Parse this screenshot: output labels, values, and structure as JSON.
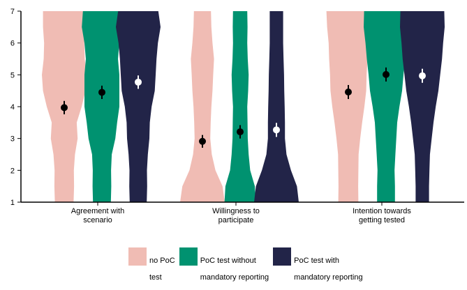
{
  "chart_data": {
    "type": "violin",
    "ylim": [
      1,
      7
    ],
    "y_ticks": [
      "1",
      "2",
      "3",
      "4",
      "5",
      "6",
      "7"
    ],
    "categories": [
      [
        "Agreement with",
        "scenario"
      ],
      [
        "Willingness to",
        "participate"
      ],
      [
        "Intention towards",
        "getting tested"
      ]
    ],
    "series": [
      {
        "name": [
          "no PoC",
          "test"
        ],
        "color": "#f0bcb4",
        "dot_color": "#000000",
        "means": [
          3.97,
          2.91,
          4.46
        ],
        "ci": [
          [
            3.76,
            4.18
          ],
          [
            2.71,
            3.11
          ],
          [
            4.24,
            4.68
          ]
        ]
      },
      {
        "name": [
          "PoC test without",
          "mandatory reporting"
        ],
        "color": "#009270",
        "dot_color": "#000000",
        "means": [
          4.45,
          3.21,
          5.01
        ],
        "ci": [
          [
            4.24,
            4.66
          ],
          [
            3.0,
            3.42
          ],
          [
            4.79,
            5.23
          ]
        ]
      },
      {
        "name": [
          "PoC test with",
          "mandatory reporting"
        ],
        "color": "#222448",
        "dot_color": "#ffffff",
        "means": [
          4.77,
          3.27,
          4.97
        ],
        "ci": [
          [
            4.56,
            4.98
          ],
          [
            3.05,
            3.49
          ],
          [
            4.75,
            5.19
          ]
        ]
      }
    ],
    "violin_density": [
      [
        [
          [
            1,
            0.42
          ],
          [
            1.5,
            0.44
          ],
          [
            2,
            0.43
          ],
          [
            2.5,
            0.48
          ],
          [
            3,
            0.6
          ],
          [
            3.5,
            0.56
          ],
          [
            4,
            0.78
          ],
          [
            4.5,
            0.95
          ],
          [
            5,
            1.0
          ],
          [
            5.5,
            0.92
          ],
          [
            6,
            0.9
          ],
          [
            6.5,
            0.95
          ],
          [
            7,
            0.95
          ]
        ],
        [
          [
            1,
            0.4
          ],
          [
            1.5,
            0.42
          ],
          [
            2,
            0.41
          ],
          [
            2.5,
            0.44
          ],
          [
            3,
            0.6
          ],
          [
            3.5,
            0.68
          ],
          [
            4,
            0.78
          ],
          [
            4.5,
            0.78
          ],
          [
            5,
            0.78
          ],
          [
            5.5,
            0.72
          ],
          [
            6,
            0.78
          ],
          [
            6.5,
            0.9
          ],
          [
            7,
            0.85
          ]
        ],
        [
          [
            1,
            0.38
          ],
          [
            1.5,
            0.4
          ],
          [
            2,
            0.39
          ],
          [
            2.5,
            0.43
          ],
          [
            3,
            0.5
          ],
          [
            3.5,
            0.52
          ],
          [
            4,
            0.6
          ],
          [
            4.5,
            0.74
          ],
          [
            5,
            0.78
          ],
          [
            5.5,
            0.82
          ],
          [
            6,
            0.88
          ],
          [
            6.5,
            1.0
          ],
          [
            7,
            0.9
          ]
        ]
      ],
      [
        [
          [
            1,
            1.0
          ],
          [
            1.5,
            0.9
          ],
          [
            2,
            0.58
          ],
          [
            2.5,
            0.42
          ],
          [
            3,
            0.35
          ],
          [
            3.5,
            0.37
          ],
          [
            4,
            0.4
          ],
          [
            4.5,
            0.45
          ],
          [
            5,
            0.48
          ],
          [
            5.5,
            0.52
          ],
          [
            6,
            0.45
          ],
          [
            6.5,
            0.4
          ],
          [
            7,
            0.38
          ]
        ],
        [
          [
            1,
            0.7
          ],
          [
            1.5,
            0.66
          ],
          [
            2,
            0.45
          ],
          [
            2.5,
            0.38
          ],
          [
            3,
            0.34
          ],
          [
            3.5,
            0.33
          ],
          [
            4,
            0.32
          ],
          [
            4.5,
            0.36
          ],
          [
            5,
            0.38
          ],
          [
            5.5,
            0.34
          ],
          [
            6,
            0.32
          ],
          [
            6.5,
            0.33
          ],
          [
            7,
            0.32
          ]
        ],
        [
          [
            1,
            1.0
          ],
          [
            1.5,
            0.92
          ],
          [
            2,
            0.65
          ],
          [
            2.5,
            0.45
          ],
          [
            3,
            0.38
          ],
          [
            3.5,
            0.38
          ],
          [
            4,
            0.37
          ],
          [
            4.5,
            0.35
          ],
          [
            5,
            0.34
          ],
          [
            5.5,
            0.32
          ],
          [
            6,
            0.3
          ],
          [
            6.5,
            0.3
          ],
          [
            7,
            0.3
          ]
        ]
      ],
      [
        [
          [
            1,
            0.45
          ],
          [
            1.5,
            0.44
          ],
          [
            2,
            0.45
          ],
          [
            2.5,
            0.46
          ],
          [
            3,
            0.53
          ],
          [
            3.5,
            0.62
          ],
          [
            4,
            0.72
          ],
          [
            4.5,
            0.8
          ],
          [
            5,
            0.82
          ],
          [
            5.5,
            0.86
          ],
          [
            6,
            0.88
          ],
          [
            6.5,
            0.95
          ],
          [
            7,
            0.98
          ]
        ],
        [
          [
            1,
            0.4
          ],
          [
            1.5,
            0.4
          ],
          [
            2,
            0.38
          ],
          [
            2.5,
            0.42
          ],
          [
            3,
            0.46
          ],
          [
            3.5,
            0.5
          ],
          [
            4,
            0.6
          ],
          [
            4.5,
            0.72
          ],
          [
            5,
            0.78
          ],
          [
            5.5,
            0.86
          ],
          [
            6,
            0.92
          ],
          [
            6.5,
            1.0
          ],
          [
            7,
            0.98
          ]
        ],
        [
          [
            1,
            0.3
          ],
          [
            1.5,
            0.3
          ],
          [
            2,
            0.32
          ],
          [
            2.5,
            0.34
          ],
          [
            3,
            0.42
          ],
          [
            3.5,
            0.5
          ],
          [
            4,
            0.6
          ],
          [
            4.5,
            0.72
          ],
          [
            5,
            0.8
          ],
          [
            5.5,
            0.88
          ],
          [
            6,
            0.93
          ],
          [
            6.5,
            1.0
          ],
          [
            7,
            0.98
          ]
        ]
      ]
    ]
  }
}
